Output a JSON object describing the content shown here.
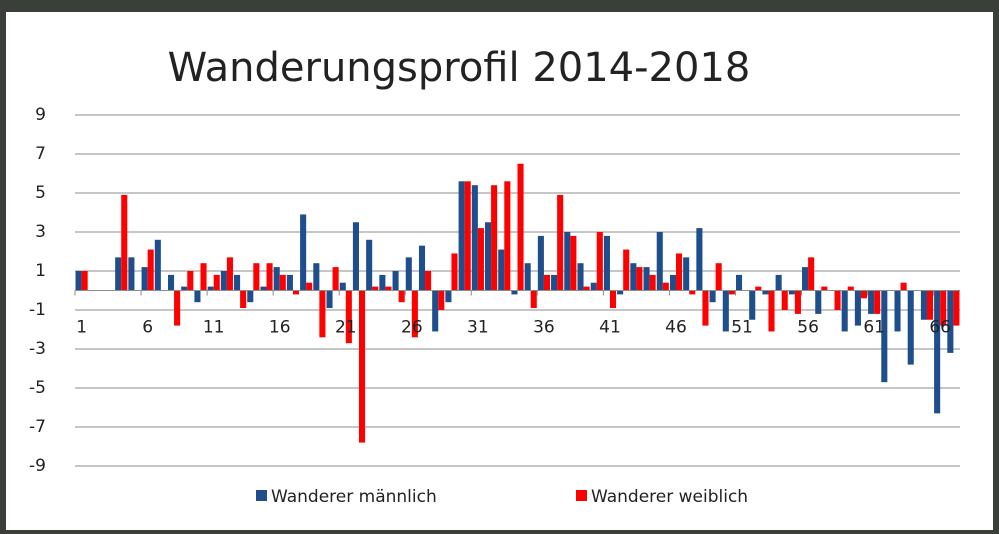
{
  "chart_data": {
    "type": "bar",
    "title": "Wanderungsprofil 2014-2018",
    "categories": [
      "1",
      null,
      null,
      null,
      null,
      "6",
      null,
      null,
      null,
      null,
      "11",
      null,
      null,
      null,
      null,
      "16",
      null,
      null,
      null,
      null,
      "21",
      null,
      null,
      null,
      null,
      "26",
      null,
      null,
      null,
      null,
      "31",
      null,
      null,
      null,
      null,
      "36",
      null,
      null,
      null,
      null,
      "41",
      null,
      null,
      null,
      null,
      "46",
      null,
      null,
      null,
      null,
      "51",
      null,
      null,
      null,
      null,
      "56",
      null,
      null,
      null,
      null,
      "61",
      null,
      null,
      null,
      null,
      "66",
      null
    ],
    "series": [
      {
        "name": "Wanderer männlich",
        "color": "#1f4e8c",
        "values": [
          1,
          0,
          0,
          1.7,
          1.7,
          1.2,
          2.6,
          0.8,
          0.2,
          -0.6,
          0.2,
          1.0,
          0.8,
          -0.6,
          0.2,
          1.2,
          0.8,
          3.9,
          1.4,
          -0.9,
          0.4,
          3.5,
          2.6,
          0.8,
          1.0,
          1.7,
          2.3,
          -2.1,
          -0.6,
          5.6,
          5.4,
          3.5,
          2.1,
          -0.2,
          1.4,
          2.8,
          0.8,
          3.0,
          1.4,
          0.4,
          2.8,
          -0.2,
          1.4,
          1.2,
          3.0,
          0.8,
          1.7,
          3.2,
          -0.6,
          -2.1,
          0.8,
          -1.5,
          -0.2,
          0.8,
          -0.2,
          1.2,
          -1.2,
          0,
          -2.1,
          -1.8,
          -1.2,
          -4.7,
          -2.1,
          -3.8,
          -1.5,
          -6.3,
          -3.2
        ]
      },
      {
        "name": "Wanderer weiblich",
        "color": "#ff0000",
        "values": [
          1,
          0,
          0,
          4.9,
          0,
          2.1,
          0,
          -1.8,
          1.0,
          1.4,
          0.8,
          1.7,
          -0.9,
          1.4,
          1.4,
          0.8,
          -0.2,
          0.4,
          -2.4,
          1.2,
          -2.7,
          -7.8,
          0.2,
          0.2,
          -0.6,
          -2.4,
          1.0,
          -1.0,
          1.9,
          5.6,
          3.2,
          5.4,
          5.6,
          6.5,
          -0.9,
          0.8,
          4.9,
          2.8,
          0.2,
          3.0,
          -0.9,
          2.1,
          1.2,
          0.8,
          0.4,
          1.9,
          -0.2,
          -1.8,
          1.4,
          -0.2,
          0,
          0.2,
          -2.1,
          -1.0,
          -1.2,
          1.7,
          0.2,
          -1.0,
          0.2,
          -0.4,
          -1.2,
          0,
          0.4,
          0,
          -1.5,
          -1.8,
          -1.8
        ]
      }
    ],
    "ylim": [
      -9,
      9
    ],
    "yticks": [
      -9,
      -7,
      -5,
      -3,
      -1,
      1,
      3,
      5,
      7,
      9
    ],
    "grid": true
  }
}
